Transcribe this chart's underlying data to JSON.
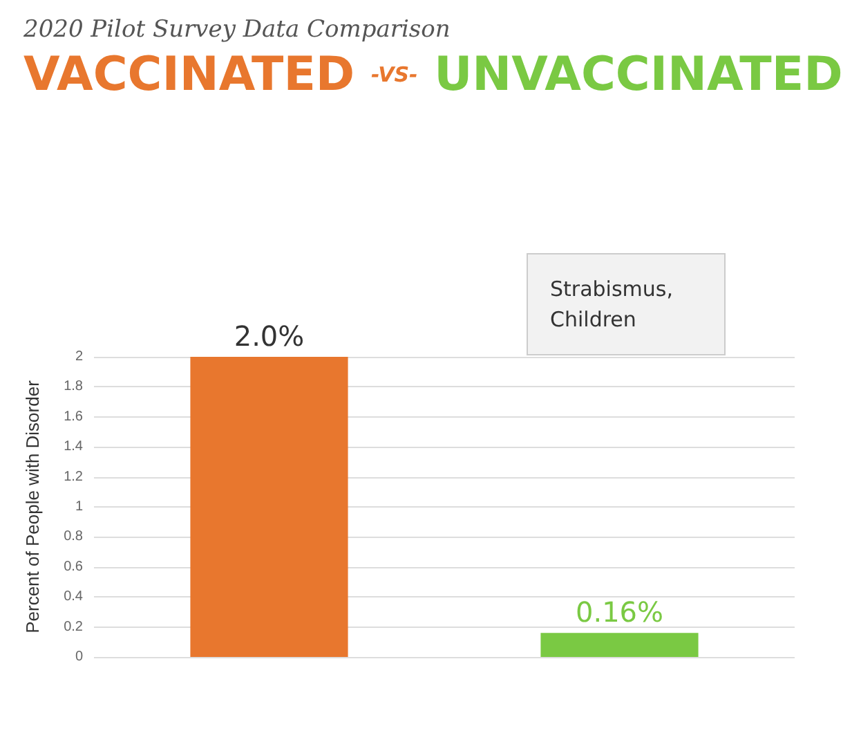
{
  "chart_data": {
    "type": "bar",
    "title": "2020 Pilot Survey Data Comparison",
    "subtitle": "VACCINATED -VS- UNVACCINATED",
    "ylabel": "Percent of People with Disorder",
    "categories": [
      null,
      null
    ],
    "values": [
      2.0,
      0.16
    ],
    "colors": [
      "#e8772e",
      "#7ac943"
    ],
    "value_labels": [
      "2.0%",
      "0.16%"
    ],
    "ylim": [
      0,
      2
    ],
    "yticks": [
      0,
      0.2,
      0.4,
      0.6,
      0.8,
      1,
      1.2,
      1.4,
      1.6,
      1.8,
      2
    ],
    "grid": "y",
    "annotations": [
      "Strabismus, Children"
    ]
  }
}
